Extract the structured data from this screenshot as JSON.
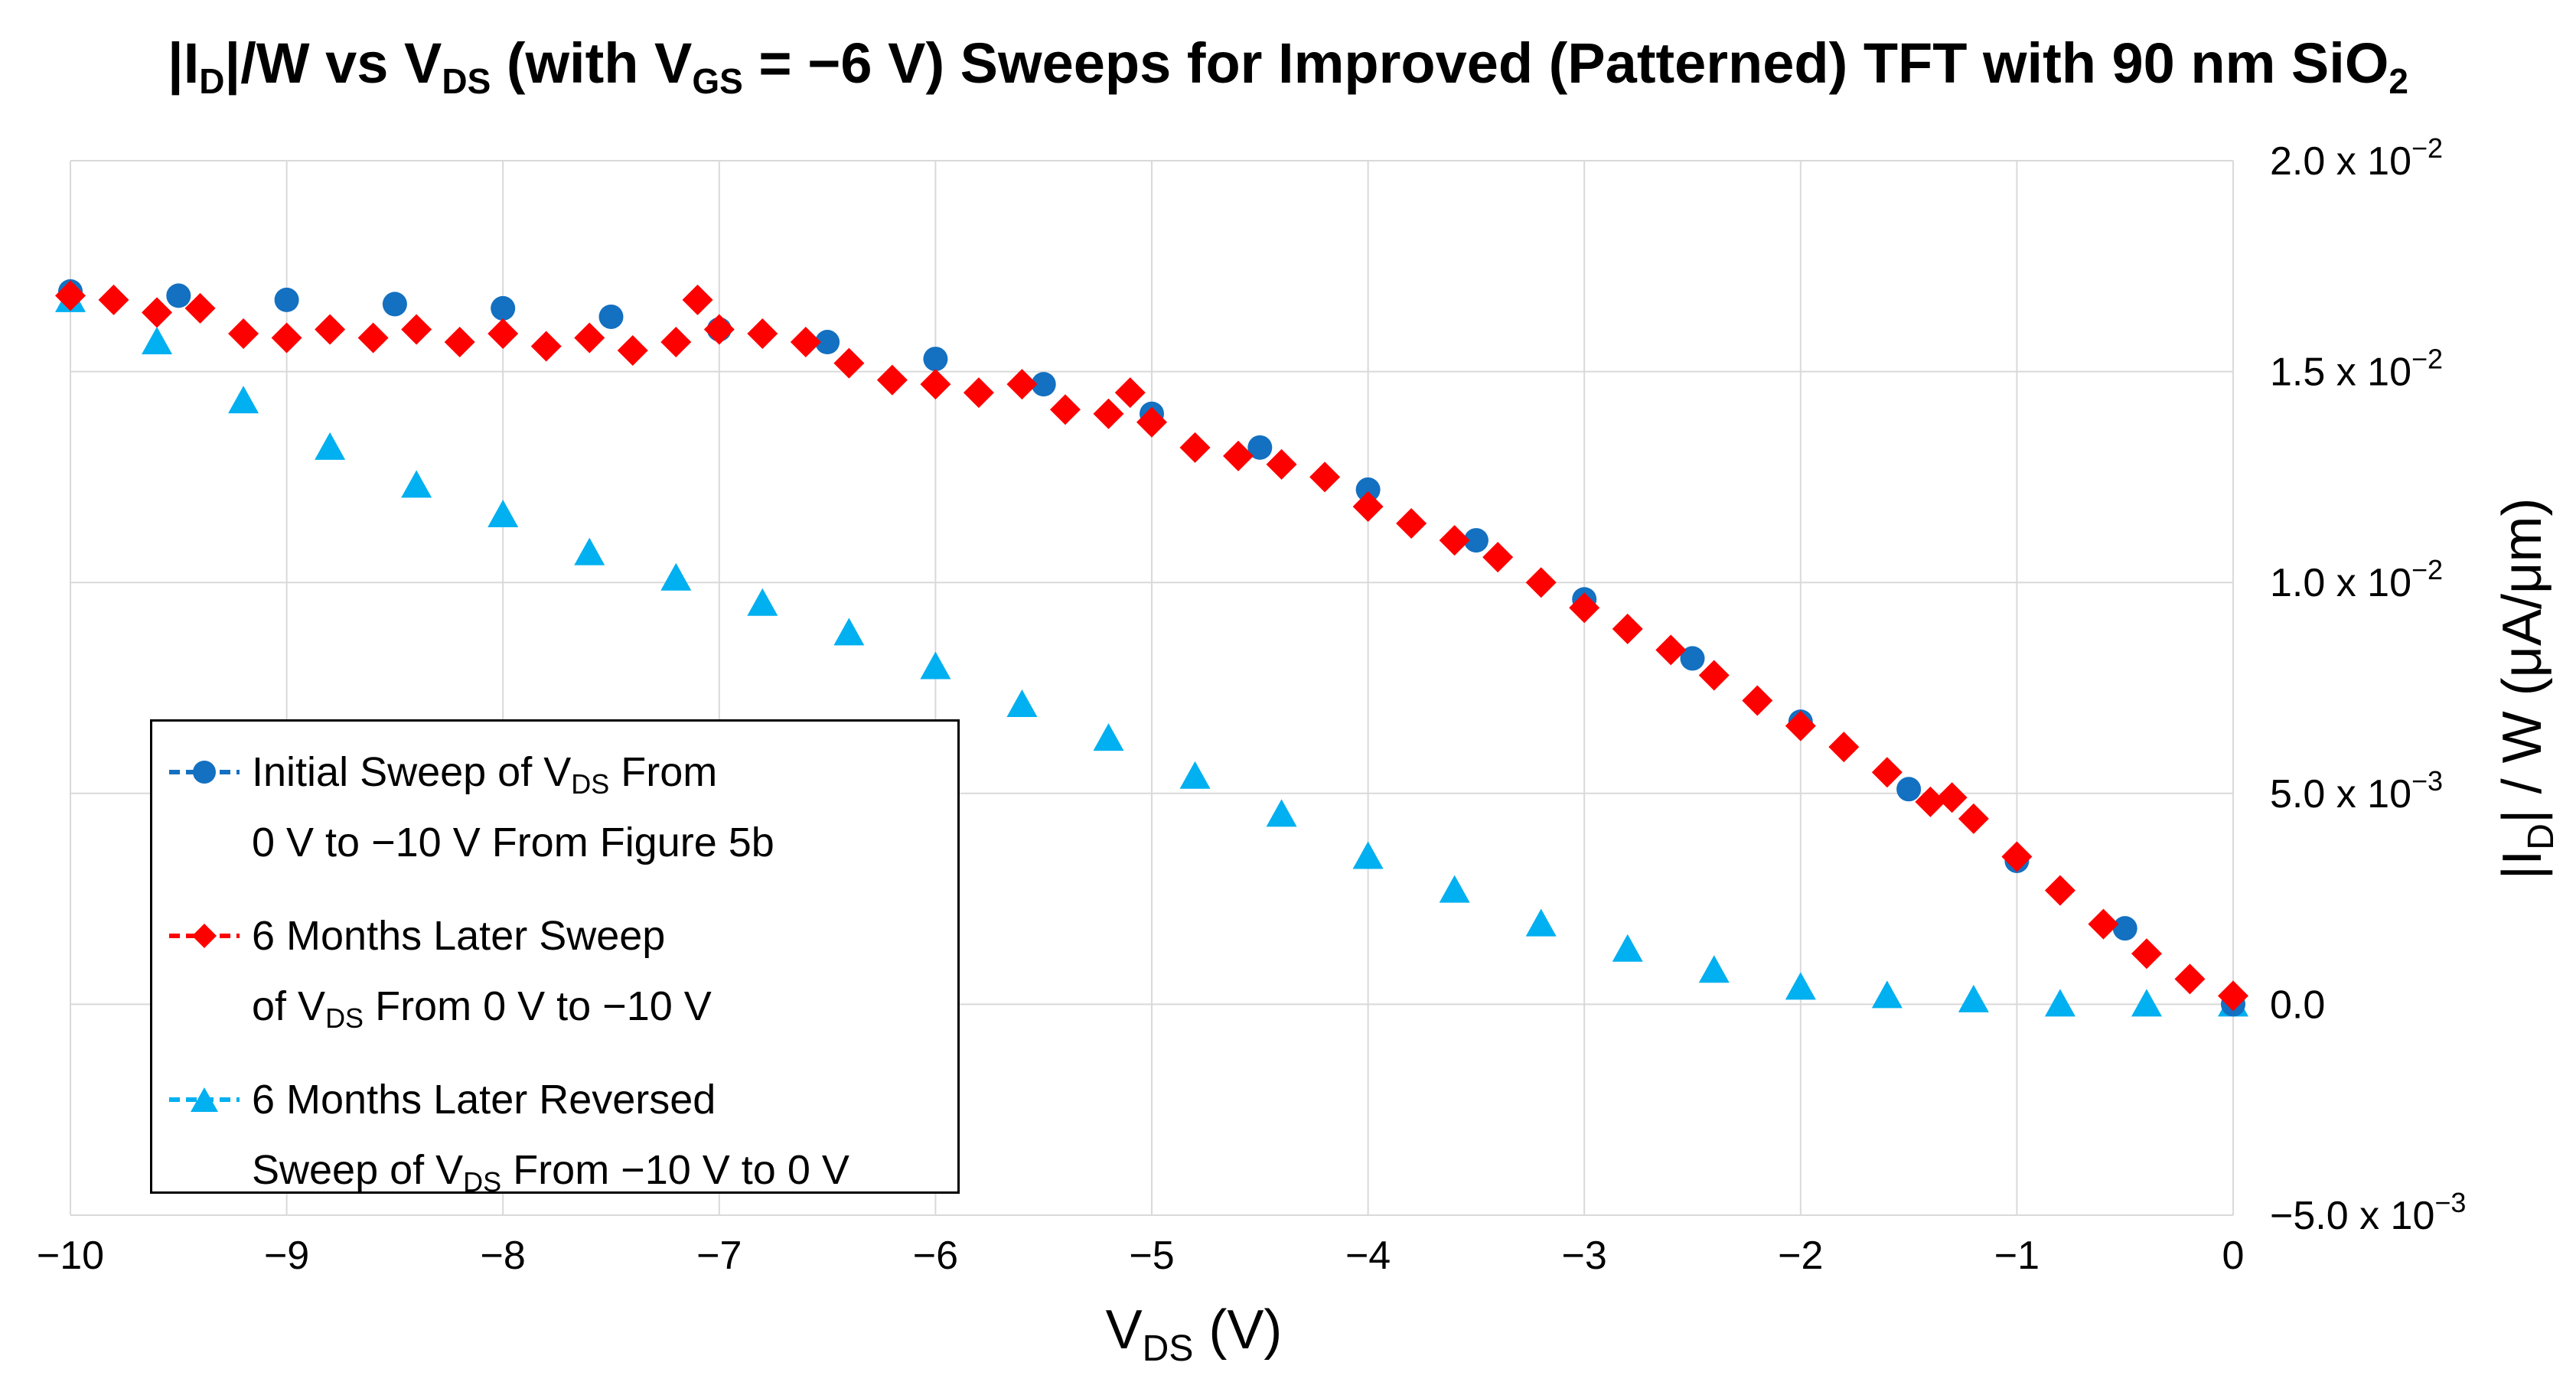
{
  "title": {
    "p1": "|I",
    "s1": "D",
    "p2": "|/W vs V",
    "s2": "DS",
    "p3": " (with V",
    "s3": "GS",
    "p4": " = −6 V) Sweeps for Improved (Patterned) TFT with 90 nm SiO",
    "s4": "2"
  },
  "axes": {
    "x_title_main": "V",
    "x_title_sub": "DS",
    "x_title_tail": " (V)",
    "y_title_a": "|I",
    "y_title_sub": "D",
    "y_title_b": "| / W (μA/μm)",
    "x_ticks": [
      "−10",
      "−9",
      "−8",
      "−7",
      "−6",
      "−5",
      "−4",
      "−3",
      "−2",
      "−1",
      "0"
    ],
    "y_ticks": [
      {
        "mant": "−5.0 x 10",
        "exp": "−3"
      },
      {
        "mant": "0.0",
        "exp": ""
      },
      {
        "mant": "5.0 x 10",
        "exp": "−3"
      },
      {
        "mant": "1.0 x 10",
        "exp": "−2"
      },
      {
        "mant": "1.5 x 10",
        "exp": "−2"
      },
      {
        "mant": "2.0 x 10",
        "exp": "−2"
      }
    ]
  },
  "legend": {
    "i1_l1": "Initial Sweep of V",
    "i1_s1": "DS",
    "i1_l1b": " From",
    "i1_l2": "0 V to −10 V From Figure 5b",
    "i2_l1": "6 Months Later Sweep",
    "i2_l2a": "of V",
    "i2_s2": "DS",
    "i2_l2b": " From 0 V to −10 V",
    "i3_l1": "6 Months Later Reversed",
    "i3_l2a": "Sweep of V",
    "i3_s2": "DS",
    "i3_l2b": " From −10 V to 0 V"
  },
  "colors": {
    "initial": "#1470c0",
    "later": "#ff0000",
    "reversed": "#00b0f0"
  },
  "chart_data": {
    "type": "scatter",
    "xlabel": "VDS (V)",
    "ylabel": "|ID| / W (μA/μm)",
    "xlim": [
      -10,
      0
    ],
    "ylim": [
      -0.005,
      0.02
    ],
    "grid": true,
    "legend_position": "bottom-left",
    "series": [
      {
        "name": "Initial Sweep of VDS From 0 V to −10 V From Figure 5b",
        "marker": "circle",
        "color": "#1470c0",
        "points": [
          [
            -10,
            0.0169
          ],
          [
            -9.5,
            0.0168
          ],
          [
            -9,
            0.0167
          ],
          [
            -8.5,
            0.0166
          ],
          [
            -8,
            0.0165
          ],
          [
            -7.5,
            0.0163
          ],
          [
            -7,
            0.016
          ],
          [
            -6.5,
            0.0157
          ],
          [
            -6,
            0.0153
          ],
          [
            -5.5,
            0.0147
          ],
          [
            -5,
            0.014
          ],
          [
            -4.5,
            0.0132
          ],
          [
            -4,
            0.0122
          ],
          [
            -3.5,
            0.011
          ],
          [
            -3,
            0.0096
          ],
          [
            -2.5,
            0.0082
          ],
          [
            -2,
            0.0067
          ],
          [
            -1.5,
            0.0051
          ],
          [
            -1,
            0.0034
          ],
          [
            -0.5,
            0.0018
          ],
          [
            0,
            0.0
          ]
        ]
      },
      {
        "name": "6 Months Later Sweep of VDS From 0 V to −10 V",
        "marker": "diamond",
        "color": "#ff0000",
        "points": [
          [
            -10,
            0.0168
          ],
          [
            -9.8,
            0.0167
          ],
          [
            -9.6,
            0.0164
          ],
          [
            -9.4,
            0.0165
          ],
          [
            -9.2,
            0.0159
          ],
          [
            -9,
            0.0158
          ],
          [
            -8.8,
            0.016
          ],
          [
            -8.6,
            0.0158
          ],
          [
            -8.4,
            0.016
          ],
          [
            -8.2,
            0.0157
          ],
          [
            -8,
            0.0159
          ],
          [
            -7.8,
            0.0156
          ],
          [
            -7.6,
            0.0158
          ],
          [
            -7.4,
            0.0155
          ],
          [
            -7.2,
            0.0157
          ],
          [
            -7.1,
            0.0167
          ],
          [
            -7,
            0.016
          ],
          [
            -6.8,
            0.0159
          ],
          [
            -6.6,
            0.0157
          ],
          [
            -6.4,
            0.0152
          ],
          [
            -6.2,
            0.0148
          ],
          [
            -6,
            0.0147
          ],
          [
            -5.8,
            0.0145
          ],
          [
            -5.6,
            0.0147
          ],
          [
            -5.4,
            0.0141
          ],
          [
            -5.2,
            0.014
          ],
          [
            -5.1,
            0.0145
          ],
          [
            -5,
            0.0138
          ],
          [
            -4.8,
            0.0132
          ],
          [
            -4.6,
            0.013
          ],
          [
            -4.4,
            0.0128
          ],
          [
            -4.2,
            0.0125
          ],
          [
            -4,
            0.0118
          ],
          [
            -3.8,
            0.0114
          ],
          [
            -3.6,
            0.011
          ],
          [
            -3.4,
            0.0106
          ],
          [
            -3.2,
            0.01
          ],
          [
            -3,
            0.0094
          ],
          [
            -2.8,
            0.0089
          ],
          [
            -2.6,
            0.0084
          ],
          [
            -2.4,
            0.0078
          ],
          [
            -2.2,
            0.0072
          ],
          [
            -2,
            0.0066
          ],
          [
            -1.8,
            0.0061
          ],
          [
            -1.6,
            0.0055
          ],
          [
            -1.4,
            0.0048
          ],
          [
            -1.3,
            0.0049
          ],
          [
            -1.2,
            0.0044
          ],
          [
            -1,
            0.0035
          ],
          [
            -0.8,
            0.0027
          ],
          [
            -0.6,
            0.0019
          ],
          [
            -0.4,
            0.0012
          ],
          [
            -0.2,
            0.0006
          ],
          [
            0,
            0.0002
          ]
        ]
      },
      {
        "name": "6 Months Later Reversed Sweep of VDS From −10 V to 0 V",
        "marker": "triangle",
        "color": "#00b0f0",
        "points": [
          [
            -10,
            0.0167
          ],
          [
            -9.6,
            0.0157
          ],
          [
            -9.2,
            0.0143
          ],
          [
            -8.8,
            0.0132
          ],
          [
            -8.4,
            0.0123
          ],
          [
            -8,
            0.0116
          ],
          [
            -7.6,
            0.0107
          ],
          [
            -7.2,
            0.0101
          ],
          [
            -6.8,
            0.0095
          ],
          [
            -6.4,
            0.0088
          ],
          [
            -6,
            0.008
          ],
          [
            -5.6,
            0.0071
          ],
          [
            -5.2,
            0.0063
          ],
          [
            -4.8,
            0.0054
          ],
          [
            -4.4,
            0.0045
          ],
          [
            -4,
            0.0035
          ],
          [
            -3.6,
            0.0027
          ],
          [
            -3.2,
            0.0019
          ],
          [
            -2.8,
            0.0013
          ],
          [
            -2.4,
            0.0008
          ],
          [
            -2,
            0.0004
          ],
          [
            -1.6,
            0.0002
          ],
          [
            -1.2,
            0.0001
          ],
          [
            -0.8,
            0.0
          ],
          [
            -0.4,
            0.0
          ],
          [
            0,
            0.0
          ]
        ]
      }
    ]
  }
}
